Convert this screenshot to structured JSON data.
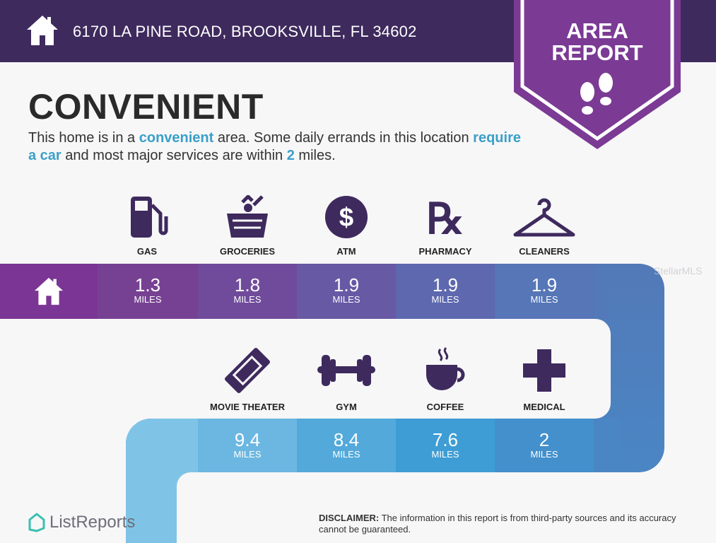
{
  "header": {
    "address": "6170 LA PINE ROAD, BROOKSVILLE, FL 34602",
    "home_icon": "house-icon"
  },
  "badge": {
    "line1": "AREA",
    "line2": "REPORT",
    "icon": "footprints-icon"
  },
  "title": "CONVENIENT",
  "description": {
    "p1": "This home is in a ",
    "h1": "convenient",
    "p2": " area. Some daily errands in this location ",
    "h2": "require a car",
    "p3": " and most major services are within ",
    "h3": "2",
    "p4": " miles."
  },
  "row1": [
    {
      "label": "GAS",
      "value": "1.3",
      "unit": "MILES",
      "icon": "gas-pump-icon"
    },
    {
      "label": "GROCERIES",
      "value": "1.8",
      "unit": "MILES",
      "icon": "grocery-basket-icon"
    },
    {
      "label": "ATM",
      "value": "1.9",
      "unit": "MILES",
      "icon": "dollar-icon"
    },
    {
      "label": "PHARMACY",
      "value": "1.9",
      "unit": "MILES",
      "icon": "rx-icon"
    },
    {
      "label": "CLEANERS",
      "value": "1.9",
      "unit": "MILES",
      "icon": "hanger-icon"
    }
  ],
  "row2": [
    {
      "label": "MOVIE THEATER",
      "value": "9.4",
      "unit": "MILES",
      "icon": "ticket-icon"
    },
    {
      "label": "GYM",
      "value": "8.4",
      "unit": "MILES",
      "icon": "dumbbell-icon"
    },
    {
      "label": "COFFEE",
      "value": "7.6",
      "unit": "MILES",
      "icon": "coffee-icon"
    },
    {
      "label": "MEDICAL",
      "value": "2",
      "unit": "MILES",
      "icon": "medical-cross-icon"
    }
  ],
  "watermark": "StellarMLS",
  "footer": {
    "logo": "ListReports",
    "disclaimer_label": "DISCLAIMER:",
    "disclaimer": " The information in this report is from third-party sources and its accuracy cannot be guaranteed."
  },
  "colors": {
    "header": "#3e2a5d",
    "badge": "#7b3a94",
    "accent": "#3a9fc9",
    "icon": "#3e2a5d"
  }
}
